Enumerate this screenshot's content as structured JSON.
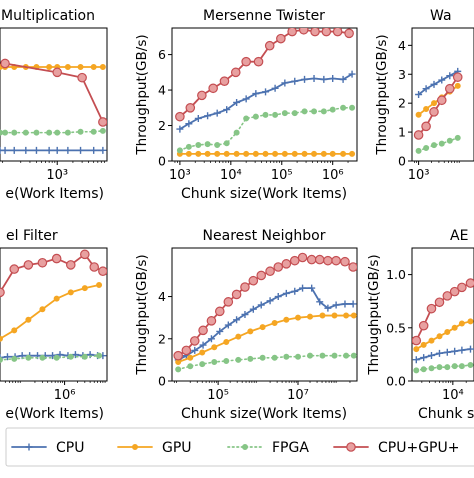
{
  "legend": {
    "entries": [
      {
        "name": "CPU",
        "color": "#4c72b0",
        "marker": "plus",
        "dash": "solid"
      },
      {
        "name": "GPU",
        "color": "#f5a623",
        "marker": "circle",
        "dash": "solid"
      },
      {
        "name": "FPGA",
        "color": "#86c586",
        "marker": "circle",
        "dash": "dotted"
      },
      {
        "name": "CPU+GPU+",
        "color": "#c44e52",
        "marker": "ring",
        "dash": "solid"
      }
    ]
  },
  "chart_data": [
    {
      "type": "line",
      "title": "Multiplication",
      "xscale": "log",
      "xlabel": "e(Work Items)",
      "ylabel": "",
      "xlim": [
        80,
        9000
      ],
      "ylim": [
        0,
        7.5
      ],
      "grid": false,
      "xticks": [
        {
          "value": 1000,
          "label": "10³"
        }
      ],
      "yticks": [],
      "series": [
        {
          "name": "CPU",
          "x": [
            80,
            100,
            150,
            250,
            400,
            700,
            1000,
            1600,
            2800,
            5000,
            7500
          ],
          "y": [
            0.6,
            0.6,
            0.6,
            0.6,
            0.6,
            0.6,
            0.6,
            0.6,
            0.6,
            0.6,
            0.6
          ]
        },
        {
          "name": "GPU",
          "x": [
            80,
            100,
            150,
            250,
            400,
            700,
            1000,
            1600,
            2800,
            5000,
            7500
          ],
          "y": [
            5.3,
            5.3,
            5.3,
            5.3,
            5.3,
            5.3,
            5.3,
            5.3,
            5.3,
            5.3,
            5.3
          ]
        },
        {
          "name": "FPGA",
          "x": [
            80,
            100,
            150,
            250,
            400,
            700,
            1000,
            1600,
            2800,
            5000,
            7500
          ],
          "y": [
            1.6,
            1.6,
            1.6,
            1.6,
            1.6,
            1.6,
            1.6,
            1.6,
            1.65,
            1.65,
            1.7
          ]
        },
        {
          "name": "CPU+GPU+",
          "x": [
            100,
            1000,
            3000,
            7500
          ],
          "y": [
            5.5,
            5.0,
            4.7,
            2.2
          ]
        }
      ]
    },
    {
      "type": "line",
      "title": "Mersenne Twister",
      "xscale": "log",
      "xlabel": "Chunk size(Work Items)",
      "ylabel": "Throughput(GB/s)",
      "xlim": [
        700,
        3000000
      ],
      "ylim": [
        0,
        7.5
      ],
      "grid": false,
      "xticks": [
        {
          "value": 1000,
          "label": "10³"
        },
        {
          "value": 10000,
          "label": "10⁴"
        },
        {
          "value": 100000,
          "label": "10⁵"
        },
        {
          "value": 1000000,
          "label": "10⁶"
        }
      ],
      "yticks": [
        {
          "value": 0,
          "label": "0"
        },
        {
          "value": 2,
          "label": "2"
        },
        {
          "value": 4,
          "label": "4"
        },
        {
          "value": 6,
          "label": "6"
        }
      ],
      "series": [
        {
          "name": "CPU",
          "x": [
            1000,
            1500,
            2300,
            3500,
            5400,
            8300,
            13000,
            20000,
            31000,
            48000,
            74000,
            115000,
            180000,
            280000,
            430000,
            670000,
            1000000,
            1600000,
            2400000
          ],
          "y": [
            1.8,
            2.1,
            2.4,
            2.55,
            2.7,
            2.9,
            3.3,
            3.5,
            3.8,
            3.9,
            4.1,
            4.4,
            4.5,
            4.6,
            4.65,
            4.6,
            4.65,
            4.6,
            4.9
          ]
        },
        {
          "name": "GPU",
          "x": [
            1000,
            1500,
            2300,
            3500,
            5400,
            8300,
            13000,
            20000,
            31000,
            48000,
            74000,
            115000,
            180000,
            280000,
            430000,
            670000,
            1000000,
            1600000,
            2400000
          ],
          "y": [
            0.4,
            0.4,
            0.4,
            0.4,
            0.4,
            0.4,
            0.4,
            0.4,
            0.4,
            0.4,
            0.4,
            0.4,
            0.4,
            0.4,
            0.4,
            0.4,
            0.4,
            0.4,
            0.4
          ]
        },
        {
          "name": "FPGA",
          "x": [
            1000,
            1500,
            2300,
            3500,
            5400,
            8300,
            13000,
            20000,
            31000,
            48000,
            74000,
            115000,
            180000,
            280000,
            430000,
            670000,
            1000000,
            1600000,
            2400000
          ],
          "y": [
            0.6,
            0.8,
            0.9,
            0.95,
            0.9,
            1.0,
            1.6,
            2.4,
            2.5,
            2.6,
            2.6,
            2.7,
            2.7,
            2.8,
            2.8,
            2.8,
            2.9,
            3.0,
            3.0
          ]
        },
        {
          "name": "CPU+GPU+",
          "x": [
            1000,
            1600,
            2700,
            4500,
            7500,
            12500,
            20000,
            35000,
            58000,
            96000,
            160000,
            270000,
            450000,
            750000,
            1250000,
            2100000
          ],
          "y": [
            2.5,
            3.0,
            3.7,
            4.1,
            4.5,
            5.0,
            5.6,
            5.6,
            6.5,
            6.9,
            7.3,
            7.4,
            7.3,
            7.3,
            7.3,
            7.2
          ]
        }
      ]
    },
    {
      "type": "line",
      "title": "Wa",
      "xscale": "log",
      "xlabel": "",
      "ylabel": "Throughput(GB/s)",
      "xlim": [
        700,
        20000
      ],
      "ylim": [
        0,
        4.6
      ],
      "grid": false,
      "xticks": [
        {
          "value": 1000,
          "label": "10³"
        }
      ],
      "yticks": [
        {
          "value": 0,
          "label": "0"
        },
        {
          "value": 1,
          "label": "1"
        },
        {
          "value": 2,
          "label": "2"
        },
        {
          "value": 3,
          "label": "3"
        },
        {
          "value": 4,
          "label": "4"
        }
      ],
      "series": [
        {
          "name": "CPU",
          "x": [
            1000,
            1500,
            2300,
            3500,
            5400,
            8300
          ],
          "y": [
            2.3,
            2.5,
            2.65,
            2.8,
            2.95,
            3.1
          ]
        },
        {
          "name": "GPU",
          "x": [
            1000,
            1500,
            2300,
            3500,
            5400,
            8300
          ],
          "y": [
            1.6,
            1.8,
            2.0,
            2.2,
            2.4,
            2.6
          ]
        },
        {
          "name": "FPGA",
          "x": [
            1000,
            1500,
            2300,
            3500,
            5400,
            8300
          ],
          "y": [
            0.35,
            0.45,
            0.55,
            0.6,
            0.7,
            0.8
          ]
        },
        {
          "name": "CPU+GPU+",
          "x": [
            1000,
            1500,
            2300,
            3500,
            5400,
            8300
          ],
          "y": [
            0.9,
            1.2,
            1.7,
            2.1,
            2.5,
            2.9
          ]
        }
      ]
    },
    {
      "type": "line",
      "title": "el Filter",
      "xscale": "log",
      "xlabel": "e(Work Items)",
      "ylabel": "",
      "xlim": [
        30000,
        10000000
      ],
      "ylim": [
        0,
        6.3
      ],
      "grid": false,
      "xticks": [
        {
          "value": 1000000,
          "label": "10⁶"
        }
      ],
      "yticks": [],
      "series": [
        {
          "name": "CPU",
          "x": [
            30000,
            45000,
            68000,
            100000,
            150000,
            230000,
            350000,
            520000,
            780000,
            1200000,
            1800000,
            2700000,
            4000000,
            6000000,
            8000000
          ],
          "y": [
            1.1,
            1.15,
            1.15,
            1.2,
            1.2,
            1.2,
            1.2,
            1.2,
            1.25,
            1.2,
            1.25,
            1.2,
            1.25,
            1.2,
            1.2
          ]
        },
        {
          "name": "GPU",
          "x": [
            30000,
            65000,
            140000,
            300000,
            650000,
            1400000,
            3000000,
            6500000
          ],
          "y": [
            2.0,
            2.4,
            2.9,
            3.4,
            3.9,
            4.2,
            4.4,
            4.55
          ]
        },
        {
          "name": "FPGA",
          "x": [
            30000,
            65000,
            140000,
            300000,
            650000,
            1400000,
            3000000,
            6500000
          ],
          "y": [
            1.0,
            1.05,
            1.1,
            1.1,
            1.1,
            1.15,
            1.15,
            1.2
          ]
        },
        {
          "name": "CPU+GPU+",
          "x": [
            30000,
            65000,
            140000,
            300000,
            650000,
            1400000,
            3000000,
            5000000,
            8000000
          ],
          "y": [
            4.2,
            5.3,
            5.5,
            5.6,
            5.8,
            5.5,
            6.0,
            5.4,
            5.2
          ]
        }
      ]
    },
    {
      "type": "line",
      "title": "Nearest Neighbor",
      "xscale": "log",
      "xlabel": "Chunk size(Work Items)",
      "ylabel": "Throughput(GB/s)",
      "xlim": [
        7000,
        300000000
      ],
      "ylim": [
        0,
        6.3
      ],
      "grid": false,
      "xticks": [
        {
          "value": 100000,
          "label": "10⁵"
        },
        {
          "value": 10000000,
          "label": "10⁷"
        }
      ],
      "yticks": [
        {
          "value": 0,
          "label": "0"
        },
        {
          "value": 2,
          "label": "2"
        },
        {
          "value": 4,
          "label": "4"
        }
      ],
      "series": [
        {
          "name": "CPU",
          "x": [
            10000,
            16000,
            26000,
            42000,
            68000,
            110000,
            180000,
            290000,
            470000,
            760000,
            1200000,
            2000000,
            3200000,
            5100000,
            8300000,
            13000000,
            22000000,
            35000000,
            56000000,
            90000000,
            150000000,
            240000000
          ],
          "y": [
            1.0,
            1.2,
            1.45,
            1.7,
            2.0,
            2.35,
            2.65,
            2.9,
            3.15,
            3.4,
            3.6,
            3.8,
            4.0,
            4.15,
            4.25,
            4.4,
            4.4,
            3.75,
            3.45,
            3.6,
            3.65,
            3.65
          ]
        },
        {
          "name": "GPU",
          "x": [
            10000,
            20000,
            40000,
            80000,
            160000,
            320000,
            640000,
            1300000,
            2600000,
            5100000,
            10000000,
            20000000,
            41000000,
            82000000,
            160000000,
            250000000
          ],
          "y": [
            0.9,
            1.1,
            1.35,
            1.6,
            1.85,
            2.1,
            2.35,
            2.55,
            2.75,
            2.9,
            3.0,
            3.05,
            3.1,
            3.1,
            3.1,
            3.1
          ]
        },
        {
          "name": "FPGA",
          "x": [
            10000,
            20000,
            40000,
            80000,
            160000,
            320000,
            640000,
            1300000,
            2600000,
            5100000,
            10000000,
            20000000,
            41000000,
            82000000,
            160000000,
            250000000
          ],
          "y": [
            0.55,
            0.7,
            0.8,
            0.9,
            0.95,
            1.0,
            1.05,
            1.1,
            1.1,
            1.15,
            1.15,
            1.2,
            1.2,
            1.2,
            1.2,
            1.2
          ]
        },
        {
          "name": "CPU+GPU+",
          "x": [
            10000,
            16000,
            26000,
            42000,
            68000,
            110000,
            180000,
            290000,
            470000,
            760000,
            1200000,
            2000000,
            3200000,
            5100000,
            8300000,
            13000000,
            22000000,
            35000000,
            56000000,
            90000000,
            150000000,
            240000000
          ],
          "y": [
            1.2,
            1.45,
            1.9,
            2.4,
            2.85,
            3.3,
            3.75,
            4.1,
            4.45,
            4.75,
            5.0,
            5.2,
            5.4,
            5.55,
            5.7,
            5.85,
            5.75,
            5.75,
            5.7,
            5.7,
            5.65,
            5.4
          ]
        }
      ]
    },
    {
      "type": "line",
      "title": "AE",
      "xscale": "log",
      "xlabel": "Chunk size",
      "ylabel": "Throughput(GB/s)",
      "xlim": [
        1200,
        30000
      ],
      "ylim": [
        0,
        1.25
      ],
      "grid": false,
      "xticks": [
        {
          "value": 10000,
          "label": "10⁴"
        }
      ],
      "yticks": [
        {
          "value": 0,
          "label": "0.0"
        },
        {
          "value": 0.5,
          "label": "0.5"
        },
        {
          "value": 1,
          "label": "1.0"
        }
      ],
      "series": [
        {
          "name": "CPU",
          "x": [
            1500,
            2200,
            3300,
            5000,
            7500,
            11000,
            16000,
            25000
          ],
          "y": [
            0.2,
            0.22,
            0.24,
            0.26,
            0.27,
            0.28,
            0.29,
            0.3
          ]
        },
        {
          "name": "GPU",
          "x": [
            1500,
            2200,
            3300,
            5000,
            7500,
            11000,
            16000,
            25000
          ],
          "y": [
            0.3,
            0.34,
            0.38,
            0.42,
            0.46,
            0.5,
            0.54,
            0.56
          ]
        },
        {
          "name": "FPGA",
          "x": [
            1500,
            2200,
            3300,
            5000,
            7500,
            11000,
            16000,
            25000
          ],
          "y": [
            0.1,
            0.11,
            0.12,
            0.13,
            0.13,
            0.14,
            0.14,
            0.15
          ]
        },
        {
          "name": "CPU+GPU+",
          "x": [
            1500,
            2200,
            3300,
            5000,
            7500,
            11000,
            16000,
            25000
          ],
          "y": [
            0.38,
            0.52,
            0.68,
            0.74,
            0.8,
            0.84,
            0.88,
            0.92
          ]
        }
      ]
    }
  ]
}
